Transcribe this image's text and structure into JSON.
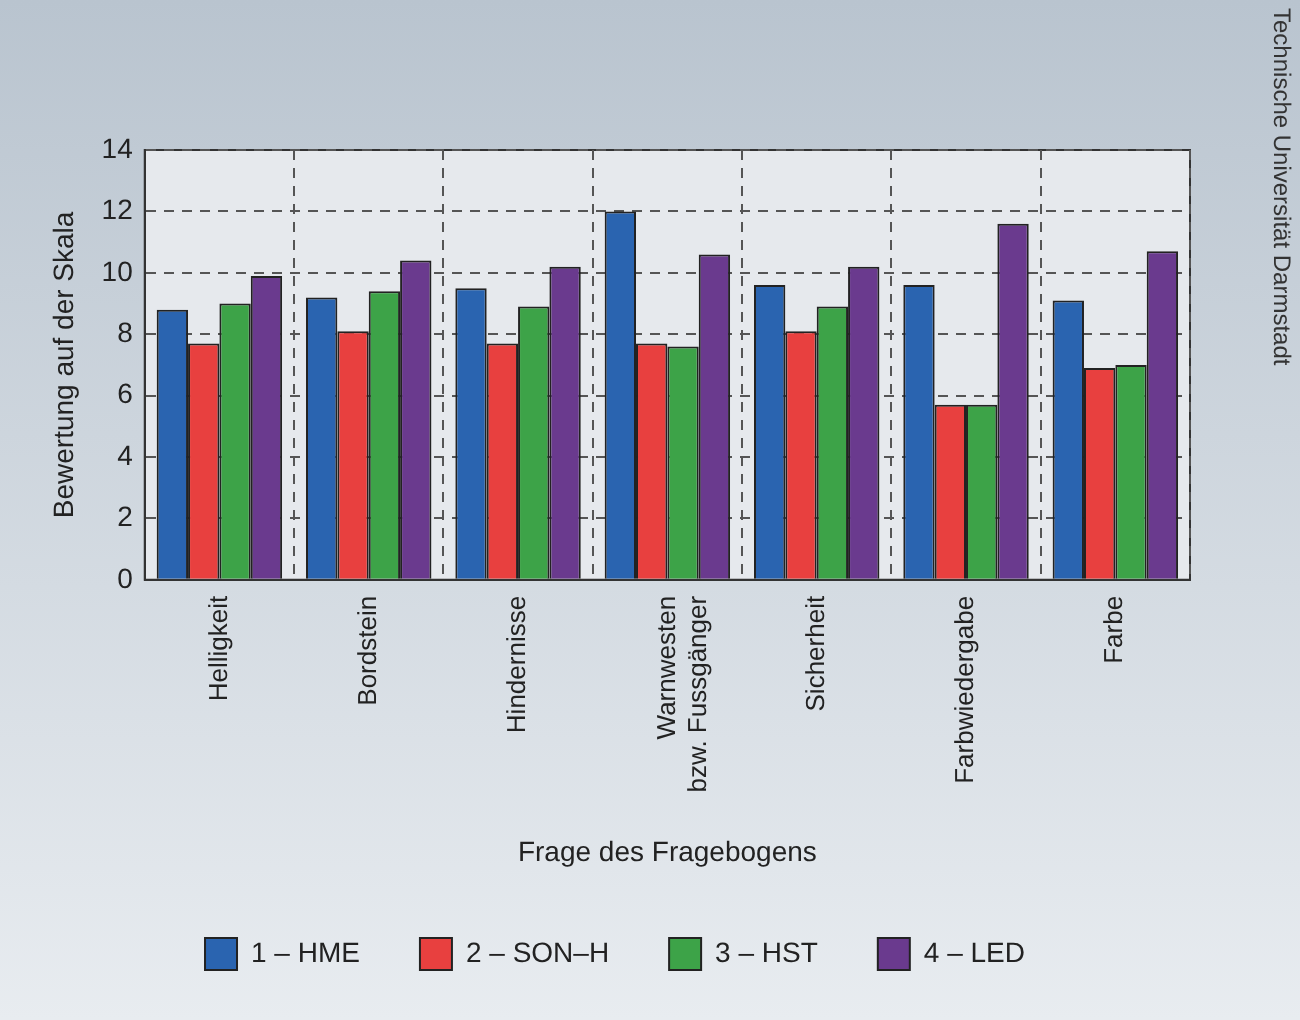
{
  "chart_data": {
    "type": "bar",
    "xlabel": "Frage des Fragebogens",
    "ylabel": "Bewertung auf der Skala",
    "categories": [
      "Helligkeit",
      "Bordstein",
      "Hindernisse",
      "Warnwesten\nbzw. Fussgänger",
      "Sicherheit",
      "Farbwiedergabe",
      "Farbe"
    ],
    "series": [
      {
        "name": "1 – HME",
        "color": "#2a64b0",
        "values": [
          8.8,
          9.2,
          9.5,
          12.0,
          9.6,
          9.6,
          9.1
        ]
      },
      {
        "name": "2 – SON–H",
        "color": "#e8403f",
        "values": [
          7.7,
          8.1,
          7.7,
          7.7,
          8.1,
          5.7,
          6.9
        ]
      },
      {
        "name": "3 – HST",
        "color": "#3da348",
        "values": [
          9.0,
          9.4,
          8.9,
          7.6,
          8.9,
          5.7,
          7.0
        ]
      },
      {
        "name": "4 – LED",
        "color": "#6a3a8e",
        "values": [
          9.9,
          10.4,
          10.2,
          10.6,
          10.2,
          11.6,
          10.7
        ]
      }
    ],
    "ylim": [
      0,
      14
    ],
    "yticks": [
      0,
      2,
      4,
      6,
      8,
      10,
      12,
      14
    ],
    "grid": true,
    "legend": "bottom",
    "annotations": [
      "Technische Universität Darmstadt"
    ]
  }
}
